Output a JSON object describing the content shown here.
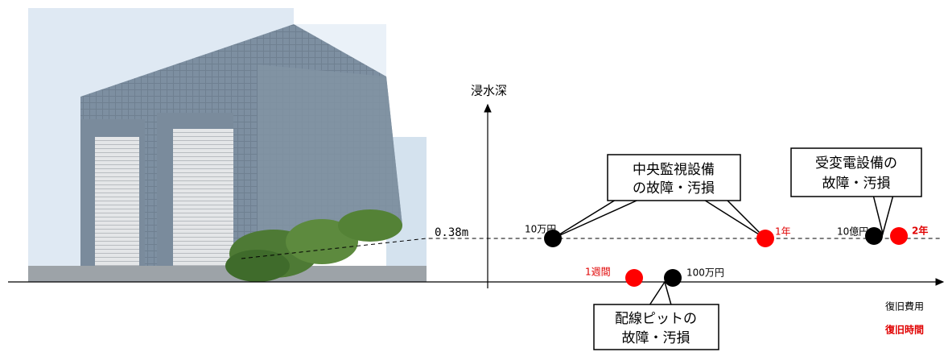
{
  "axes": {
    "y_label": "浸水深",
    "x_label_cost": "復旧費用",
    "x_label_time": "復旧時間"
  },
  "depth_label": "0.38m",
  "points": [
    {
      "label": "10万円"
    },
    {
      "label": "1年"
    },
    {
      "label": "10億円"
    },
    {
      "label": "2年"
    },
    {
      "label": "1週間"
    },
    {
      "label": "100万円"
    }
  ],
  "callouts": [
    {
      "lines": [
        "中央監視設備",
        "の故障・汚損"
      ]
    },
    {
      "lines": [
        "受変電設備の",
        "故障・汚損"
      ]
    },
    {
      "lines": [
        "配線ピットの",
        "故障・汚損"
      ]
    }
  ]
}
